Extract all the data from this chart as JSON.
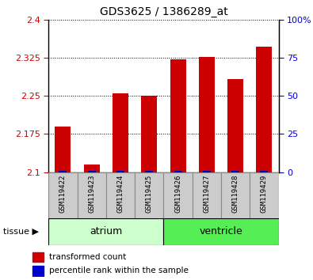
{
  "title": "GDS3625 / 1386289_at",
  "samples": [
    "GSM119422",
    "GSM119423",
    "GSM119424",
    "GSM119425",
    "GSM119426",
    "GSM119427",
    "GSM119428",
    "GSM119429"
  ],
  "red_values": [
    2.19,
    2.115,
    2.255,
    2.25,
    2.322,
    2.327,
    2.283,
    2.347
  ],
  "blue_values": [
    1.0,
    1.0,
    1.0,
    1.0,
    1.0,
    1.0,
    1.0,
    1.0
  ],
  "ymin": 2.1,
  "ymax": 2.4,
  "yticks": [
    2.1,
    2.175,
    2.25,
    2.325,
    2.4
  ],
  "ytick_labels": [
    "2.1",
    "2.175",
    "2.25",
    "2.325",
    "2.4"
  ],
  "y2ticks": [
    0,
    25,
    50,
    75,
    100
  ],
  "y2labels": [
    "0",
    "25",
    "50",
    "75",
    "100%"
  ],
  "bar_width": 0.55,
  "red_color": "#cc0000",
  "blue_color": "#0000cc",
  "atrium_color": "#ccffcc",
  "ventricle_color": "#55ee55",
  "atrium_label": "atrium",
  "ventricle_label": "ventricle",
  "tissue_label": "tissue",
  "legend_red": "transformed count",
  "legend_blue": "percentile rank within the sample",
  "tick_label_bg": "#cccccc"
}
